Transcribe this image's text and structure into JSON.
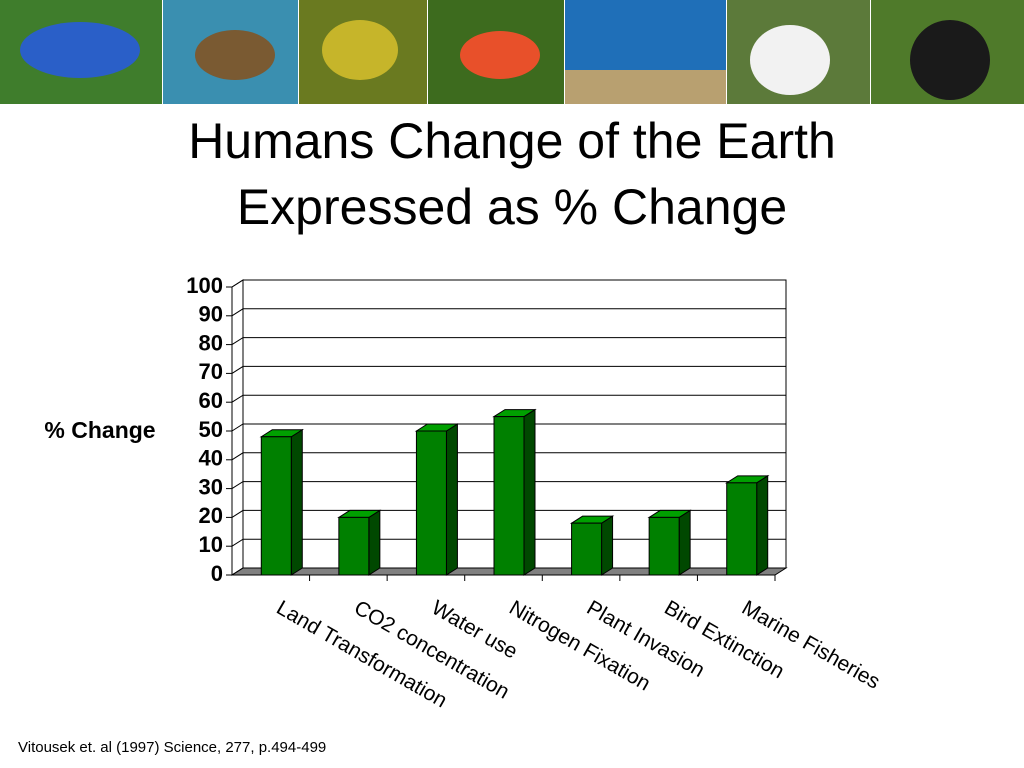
{
  "chart_data": {
    "type": "bar3d",
    "title": "Humans Change of the Earth",
    "subtitle": "Expressed as % Change",
    "y_label": "% Change",
    "categories": [
      "Land Transformation",
      "CO2 concentration",
      "Water use",
      "Nitrogen Fixation",
      "Plant Invasion",
      "Bird Extinction",
      "Marine Fisheries"
    ],
    "values": [
      48,
      20,
      50,
      55,
      18,
      20,
      32
    ],
    "color": "#008000",
    "ylim": [
      0,
      100
    ],
    "yticks": [
      0,
      10,
      20,
      30,
      40,
      50,
      60,
      70,
      80,
      90,
      100
    ],
    "grid": true,
    "source": "Vitousek et. al (1997) Science, 277, p.494-499"
  }
}
